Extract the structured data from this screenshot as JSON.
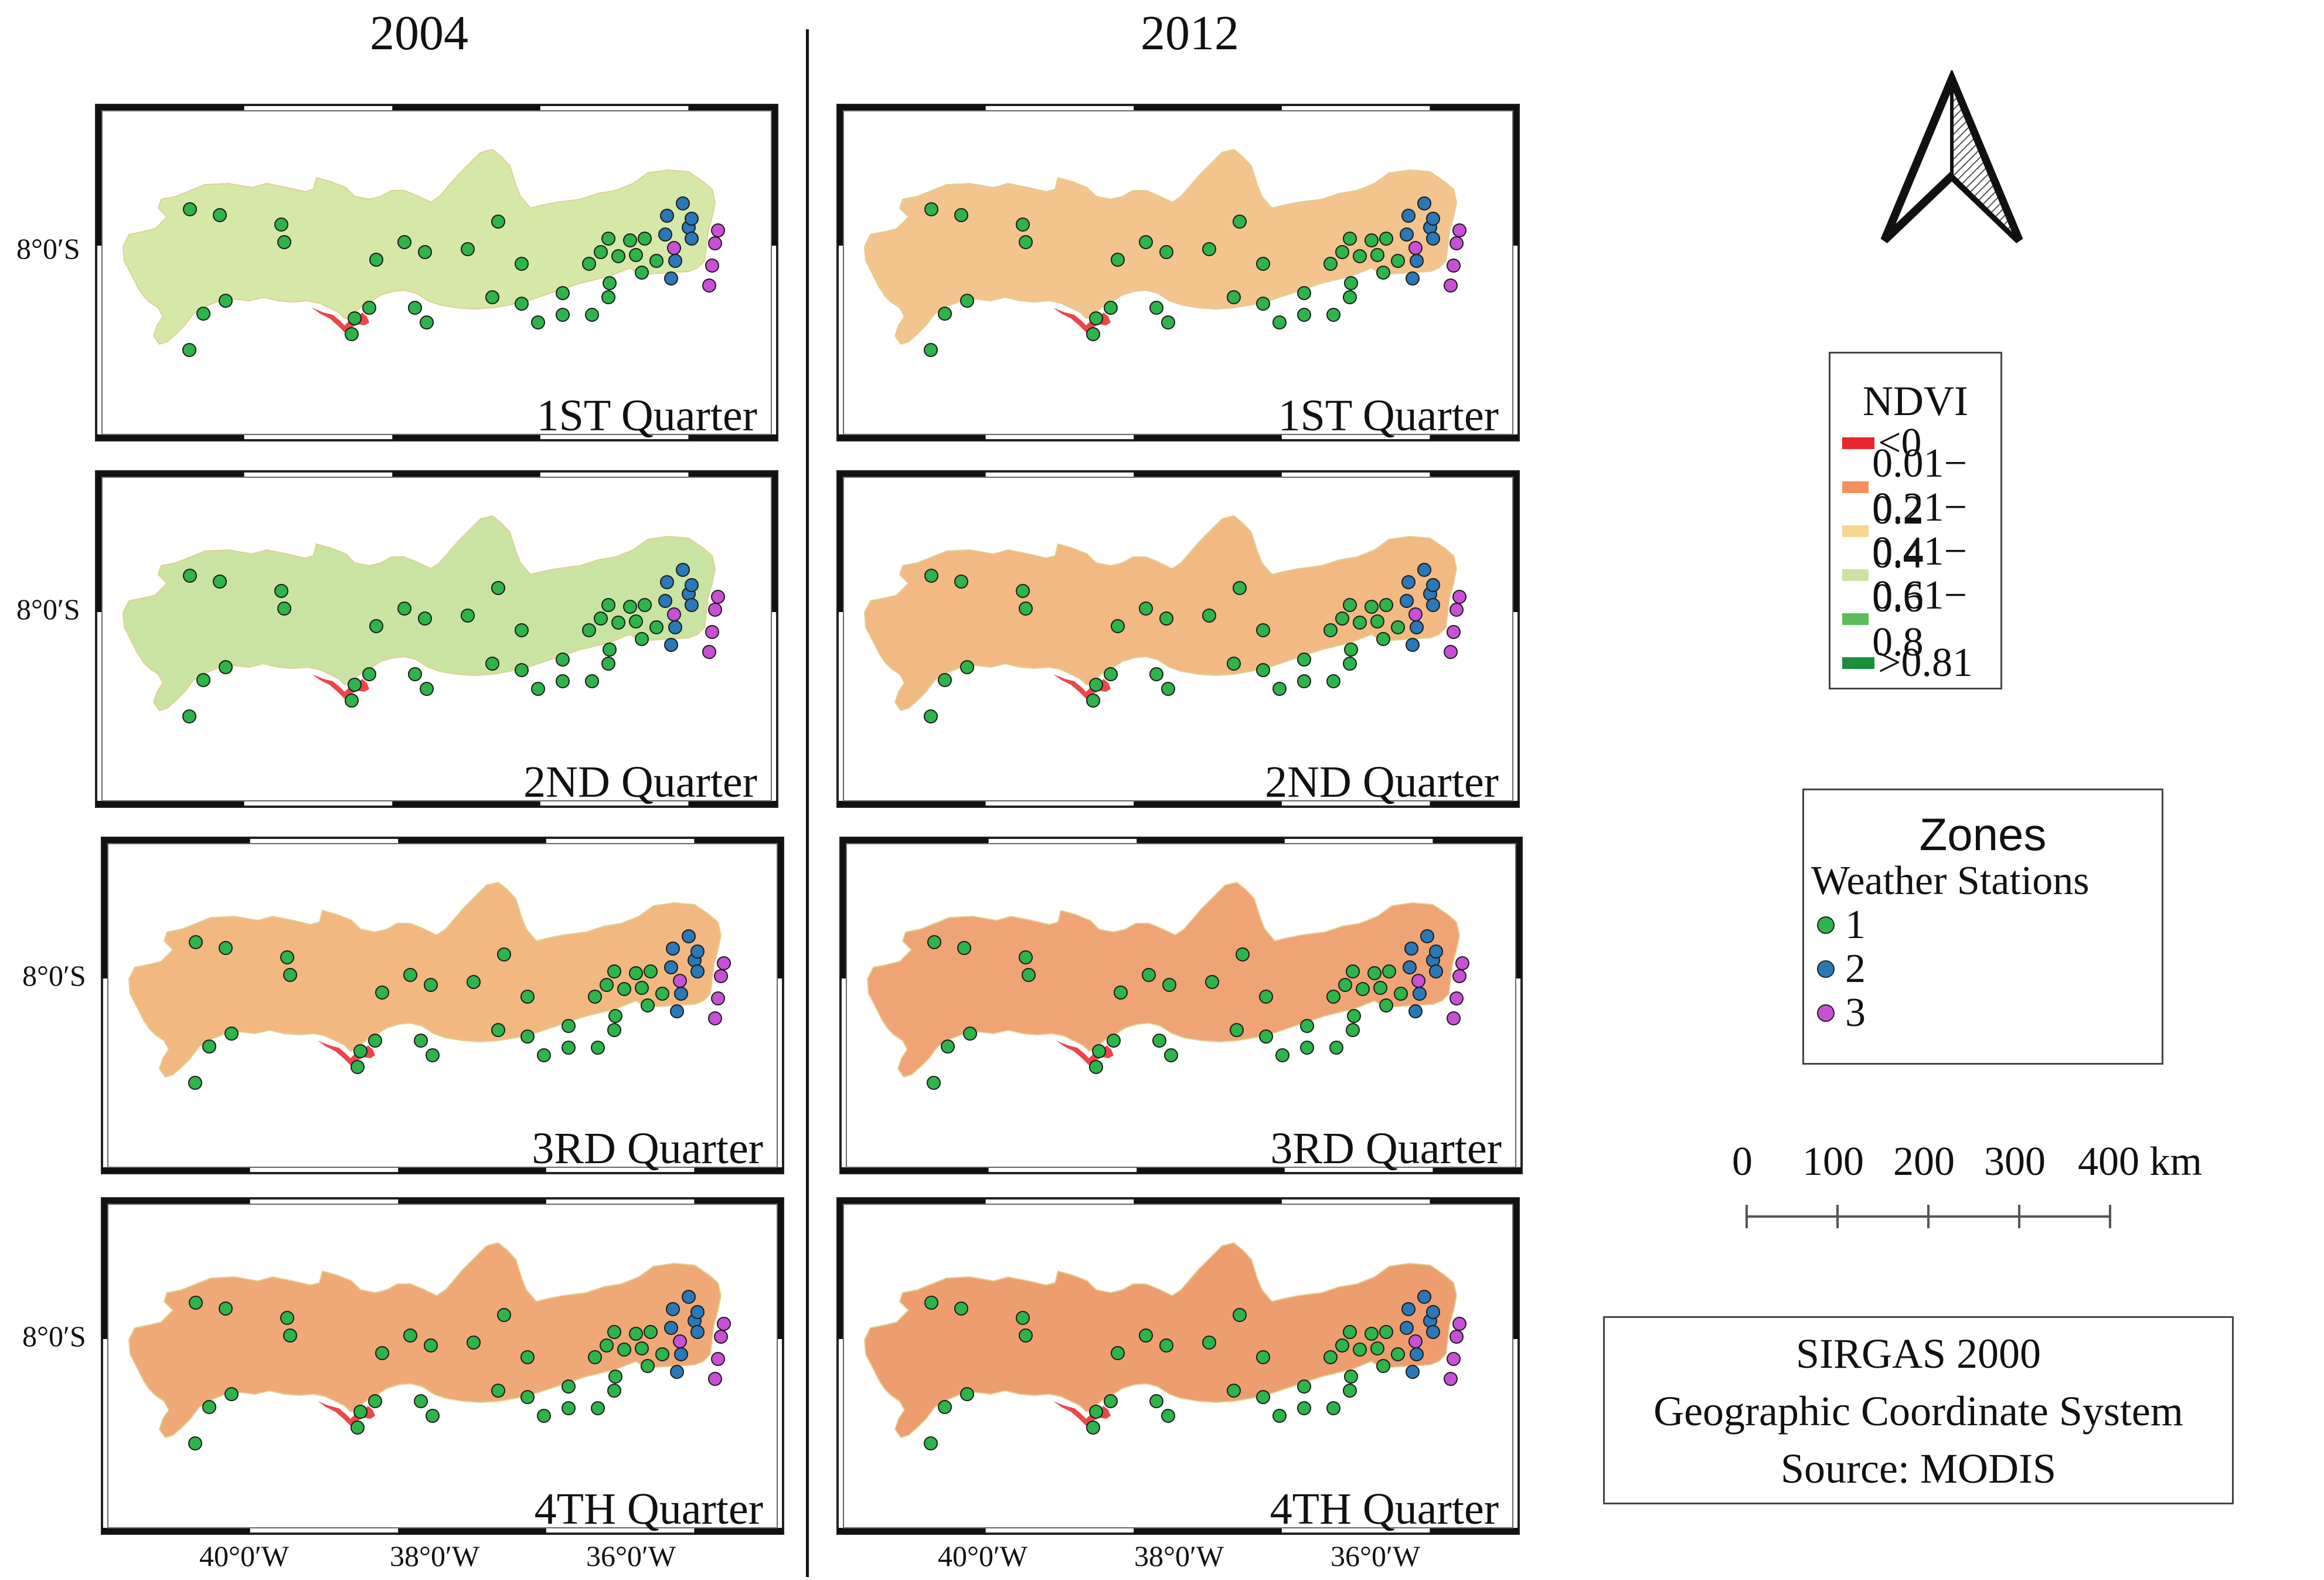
{
  "years": [
    "2004",
    "2012"
  ],
  "quarters": [
    "1ST Quarter",
    "2ND Quarter",
    "3RD Quarter",
    "4TH Quarter"
  ],
  "lat_label": "8°0′S",
  "lon_labels": [
    "40°0′W",
    "38°0′W",
    "36°0′W"
  ],
  "ndvi_legend": {
    "title": "NDVI",
    "items": [
      {
        "label": "<0",
        "color": "#e8262b"
      },
      {
        "label": "0.01− 0.2",
        "color": "#f4915a"
      },
      {
        "label": "0.21− 0.4",
        "color": "#f7d691"
      },
      {
        "label": "0.41− 0.6",
        "color": "#c8e4a0"
      },
      {
        "label": "0.61− 0.8",
        "color": "#5cbc5a"
      },
      {
        "label": ">0.81",
        "color": "#1a8f3c"
      }
    ]
  },
  "zones_legend": {
    "title": "Zones",
    "subtitle": "Weather Stations",
    "items": [
      {
        "label": "1",
        "color": "#2db44a"
      },
      {
        "label": "2",
        "color": "#2a78b8"
      },
      {
        "label": "3",
        "color": "#c94fd6"
      }
    ]
  },
  "scale_bar": {
    "labels": [
      "0",
      "100",
      "200",
      "300",
      "400 km"
    ]
  },
  "crs": {
    "lines": [
      "SIRGAS 2000",
      "Geographic Coordinate System",
      "Source: MODIS"
    ]
  },
  "map_fill": {
    "2004": [
      "#d6e8a8",
      "#c9e4a2",
      "#f2b880",
      "#f0a877"
    ],
    "2012": [
      "#f3c48d",
      "#f2b983",
      "#f0a374",
      "#ee9d6f"
    ]
  }
}
